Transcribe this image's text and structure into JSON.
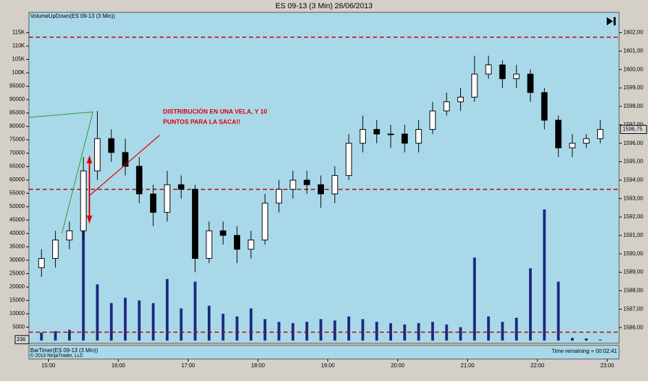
{
  "chart_data": {
    "type": "candlestick",
    "title": "ES 09-13 (3 Min)  26/06/2013",
    "indicator_label": "VolumeUpDown(ES 09-13 (3 Min))",
    "timer_label": "BarTimer(ES 09-13 (3 Min))",
    "copyright": "© 2013 NinjaTrader, LLC",
    "time_remaining": "Time remaining = 00:02:41",
    "annotation": [
      "DISTRIBUCIÓN EN UNA VELA, Y 10",
      "PUNTOS PARA LA SACA!!"
    ],
    "x": [
      14.9,
      15.1,
      15.3,
      15.5,
      15.7,
      15.9,
      16.1,
      16.3,
      16.5,
      16.7,
      16.9,
      17.1,
      17.3,
      17.5,
      17.7,
      17.9,
      18.1,
      18.3,
      18.5,
      18.7,
      18.9,
      19.1,
      19.3,
      19.5,
      19.7,
      19.9,
      20.1,
      20.3,
      20.5,
      20.7,
      20.9,
      21.1,
      21.3,
      21.5,
      21.7,
      21.9,
      22.1,
      22.3,
      22.5,
      22.7,
      22.9
    ],
    "open": [
      1589.25,
      1589.75,
      1590.75,
      1591.25,
      1594.5,
      1596.25,
      1595.5,
      1594.75,
      1593.25,
      1592.25,
      1593.75,
      1593.5,
      1589.75,
      1591.25,
      1591,
      1590.25,
      1590.75,
      1592.75,
      1593.5,
      1594,
      1593.75,
      1593.25,
      1594.25,
      1596,
      1596.75,
      1596.5,
      1596.5,
      1596,
      1596.75,
      1597.75,
      1598.25,
      1598.5,
      1599.75,
      1600.25,
      1599.5,
      1599.75,
      1598.75,
      1597.25,
      1595.75,
      1596,
      1596.25
    ],
    "high": [
      1590.25,
      1591.25,
      1591.75,
      1595.25,
      1597.75,
      1596.75,
      1596.25,
      1595.25,
      1593.75,
      1594.5,
      1594.25,
      1593.75,
      1591.75,
      1591.75,
      1591.5,
      1591.25,
      1593.25,
      1594,
      1594.5,
      1594.5,
      1594.25,
      1594.75,
      1596.5,
      1597.5,
      1597.25,
      1597,
      1597,
      1597.25,
      1598.25,
      1598.75,
      1599,
      1600.75,
      1600.75,
      1600.5,
      1600.25,
      1600,
      1599,
      1597.5,
      1596.5,
      1596.5,
      1597.25
    ],
    "low": [
      1588.75,
      1589.25,
      1590.25,
      1590.75,
      1594,
      1595,
      1594.25,
      1592.75,
      1591.5,
      1591.75,
      1593,
      1589,
      1589.5,
      1590.5,
      1589.5,
      1589.75,
      1590.5,
      1592.25,
      1593,
      1593.25,
      1592.5,
      1592.75,
      1594,
      1595.5,
      1596,
      1595.75,
      1595.5,
      1595.5,
      1596.5,
      1597.5,
      1597.75,
      1598.25,
      1599.5,
      1599,
      1599,
      1598.25,
      1596.75,
      1595.25,
      1595.25,
      1595.75,
      1596
    ],
    "close": [
      1589.75,
      1590.75,
      1591.25,
      1594.5,
      1596.25,
      1595.5,
      1594.75,
      1593.25,
      1592.25,
      1593.75,
      1593.5,
      1589.75,
      1591.25,
      1591,
      1590.25,
      1590.75,
      1592.75,
      1593.5,
      1594,
      1593.75,
      1593.25,
      1594.25,
      1596,
      1596.75,
      1596.5,
      1596.5,
      1596,
      1596.75,
      1597.75,
      1598.25,
      1598.5,
      1599.75,
      1600.25,
      1599.5,
      1599.75,
      1598.75,
      1597.25,
      1595.75,
      1596,
      1596.25,
      1596.75
    ],
    "last_price_label": "1596,75",
    "volume": [
      3000,
      3500,
      4000,
      42000,
      21000,
      14000,
      16000,
      15000,
      14000,
      23000,
      12000,
      22000,
      13000,
      10000,
      9000,
      12000,
      8000,
      7000,
      6500,
      7000,
      8000,
      7500,
      9000,
      8000,
      7000,
      6500,
      6000,
      6500,
      7000,
      6000,
      5000,
      31000,
      9000,
      7000,
      8500,
      27000,
      49000,
      22000,
      1000,
      800,
      336
    ],
    "volume_color": "#1c2a80",
    "up_color": "#ffffff",
    "down_color": "#000000",
    "levels": [
      1601.75,
      1593.5,
      1585.75
    ],
    "level_color": "#c00000",
    "xlim": [
      14.72,
      23.17
    ],
    "xticks": [
      {
        "value": 15,
        "label": "15:00"
      },
      {
        "value": 16,
        "label": "16:00"
      },
      {
        "value": 17,
        "label": "17:00"
      },
      {
        "value": 18,
        "label": "18:00"
      },
      {
        "value": 19,
        "label": "19:00"
      },
      {
        "value": 20,
        "label": "20:00"
      },
      {
        "value": 21,
        "label": "21:00"
      },
      {
        "value": 22,
        "label": "22:00"
      },
      {
        "value": 23,
        "label": "23:00"
      }
    ],
    "ylim": [
      1585.15,
      1603.1
    ],
    "yticks": [
      {
        "value": 1586,
        "label": "1586,00"
      },
      {
        "value": 1587,
        "label": "1587,00"
      },
      {
        "value": 1588,
        "label": "1588,00"
      },
      {
        "value": 1589,
        "label": "1589,00"
      },
      {
        "value": 1590,
        "label": "1590,00"
      },
      {
        "value": 1591,
        "label": "1591,00"
      },
      {
        "value": 1592,
        "label": "1592,00"
      },
      {
        "value": 1593,
        "label": "1593,00"
      },
      {
        "value": 1594,
        "label": "1594,00"
      },
      {
        "value": 1595,
        "label": "1595,00"
      },
      {
        "value": 1596,
        "label": "1596,00"
      },
      {
        "value": 1597,
        "label": "1597,00"
      },
      {
        "value": 1598,
        "label": "1598,00"
      },
      {
        "value": 1599,
        "label": "1599,00"
      },
      {
        "value": 1600,
        "label": "1600,00"
      },
      {
        "value": 1601,
        "label": "1601,00"
      },
      {
        "value": 1602,
        "label": "1602,00"
      }
    ],
    "y2lim": [
      -1000,
      122600
    ],
    "y2ticks": [
      5000,
      10000,
      15000,
      20000,
      25000,
      30000,
      35000,
      40000,
      45000,
      50000,
      55000,
      60000,
      65000,
      70000,
      75000,
      80000,
      85000,
      90000,
      95000,
      {
        "value": 100000,
        "label": "100K"
      },
      {
        "value": 105000,
        "label": "105K"
      },
      {
        "value": 110000,
        "label": "110K"
      },
      {
        "value": 115000,
        "label": "115K"
      }
    ]
  }
}
